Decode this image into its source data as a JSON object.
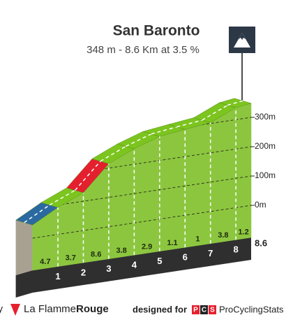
{
  "chart_data": {
    "type": "profile",
    "title": "San Baronto",
    "subtitle": "348 m - 8.6 Km at 3.5 %",
    "summit": 348,
    "distance": 8.6,
    "xticks": [
      1,
      2,
      3,
      4,
      5,
      6,
      7,
      8
    ],
    "gradients": [
      4.7,
      3.7,
      8.6,
      3.8,
      2.9,
      1.1,
      1.0,
      3.8,
      1.2
    ],
    "colors": [
      "#2a6aa0",
      "#7cc51f",
      "#e5202e",
      "#7cc51f",
      "#7cc51f",
      "#7cc51f",
      "#7cc51f",
      "#7cc51f",
      "#7cc51f"
    ],
    "yticks": [
      {
        "value": 0,
        "label": "0m"
      },
      {
        "value": 100,
        "label": "100m"
      },
      {
        "value": 200,
        "label": "200m"
      },
      {
        "value": 300,
        "label": "300m"
      }
    ]
  },
  "footer": {
    "cut": "y",
    "brand": "La Flamme",
    "brand_bold": "Rouge",
    "designed": "designed for",
    "badge": [
      "P",
      "C",
      "S"
    ],
    "site": "ProCyclingStats"
  }
}
